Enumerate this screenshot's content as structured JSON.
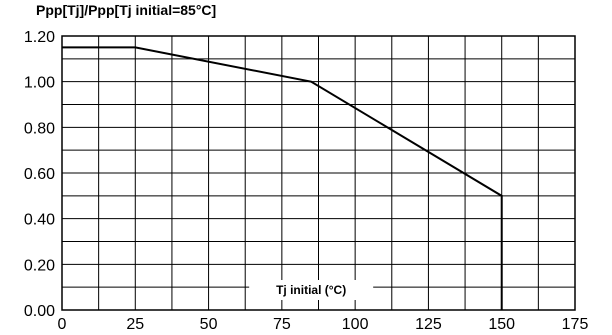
{
  "chart_data": {
    "type": "line",
    "ylabel": "Ppp[Tj]/Ppp[Tj initial=85°C]",
    "xlabel": "Tj initial (°C)",
    "xlim": [
      0,
      175
    ],
    "ylim": [
      0.0,
      1.2
    ],
    "x_ticks": [
      "0",
      "25",
      "50",
      "75",
      "100",
      "125",
      "150",
      "175"
    ],
    "y_ticks": [
      "0.00",
      "0.20",
      "0.40",
      "0.60",
      "0.80",
      "1.00",
      "1.20"
    ],
    "grid": true,
    "series": [
      {
        "points": [
          {
            "x": 0,
            "y": 1.15
          },
          {
            "x": 25,
            "y": 1.15
          },
          {
            "x": 85,
            "y": 1.0
          },
          {
            "x": 150,
            "y": 0.5
          },
          {
            "x": 150,
            "y": 0.0
          }
        ],
        "color": "#000000"
      }
    ]
  }
}
